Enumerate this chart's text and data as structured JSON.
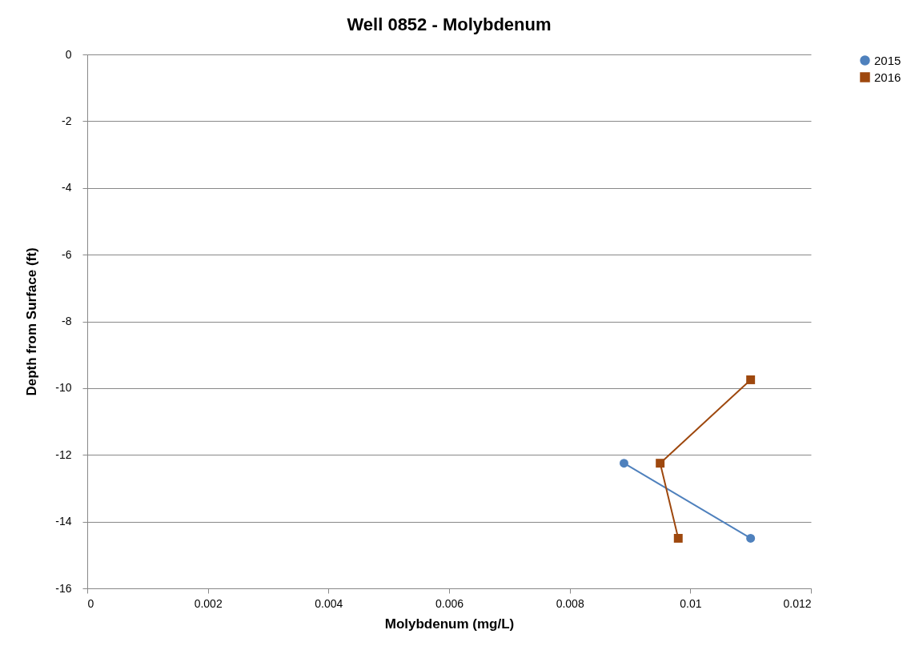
{
  "chart_data": {
    "type": "line",
    "title": "Well 0852 - Molybdenum",
    "xlabel": "Molybdenum (mg/L)",
    "ylabel": "Depth from Surface (ft)",
    "series": [
      {
        "name": "2015",
        "color": "#4f81bd",
        "marker": "circle",
        "x": [
          0.0089,
          0.011
        ],
        "values": [
          -12.25,
          -14.5
        ]
      },
      {
        "name": "2016",
        "color": "#9e480e",
        "marker": "square",
        "x": [
          0.011,
          0.0095,
          0.0098
        ],
        "values": [
          -9.75,
          -12.25,
          -14.5
        ]
      }
    ],
    "xlim": [
      0,
      0.012
    ],
    "xticks": [
      0,
      0.002,
      0.004,
      0.006,
      0.008,
      0.01,
      0.012
    ],
    "ylim": [
      -16,
      0
    ],
    "yticks": [
      0,
      -2,
      -4,
      -6,
      -8,
      -10,
      -12,
      -14,
      -16
    ],
    "grid": "y",
    "legend": "right"
  }
}
